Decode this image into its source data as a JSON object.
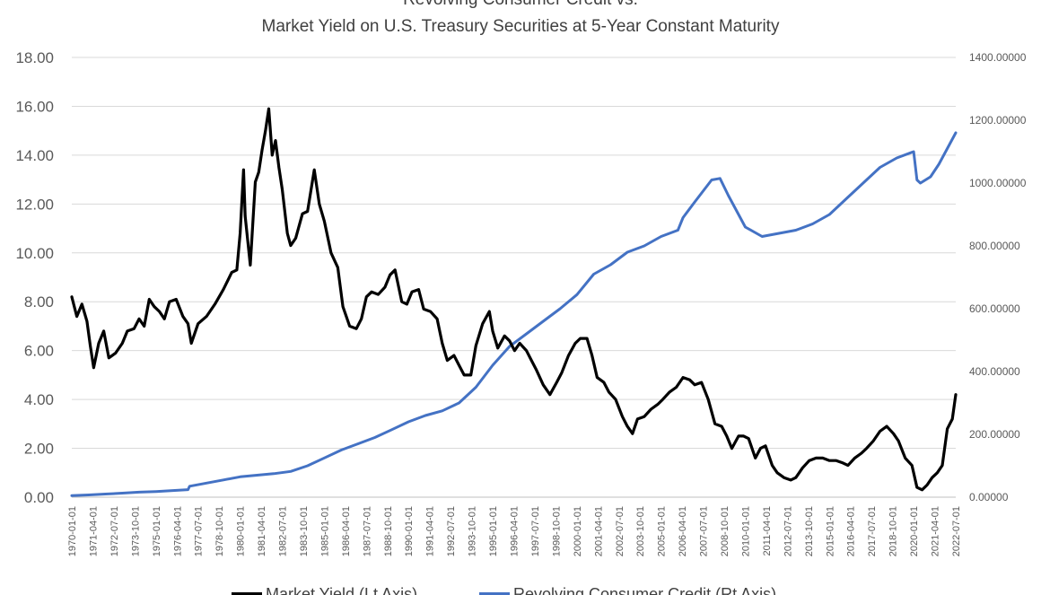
{
  "chart_data": {
    "type": "line",
    "title_lines": [
      "Revolving Consumer Credit  vs.",
      "Market Yield on U.S. Treasury Securities at 5-Year Constant Maturity"
    ],
    "y_left": {
      "min": 0,
      "max": 18,
      "step": 2,
      "tick_labels": [
        "0.00",
        "2.00",
        "4.00",
        "6.00",
        "8.00",
        "10.00",
        "12.00",
        "14.00",
        "16.00",
        "18.00"
      ]
    },
    "y_right": {
      "min": 0,
      "max": 1400,
      "step": 200,
      "tick_labels": [
        "0.00000",
        "200.00000",
        "400.00000",
        "600.00000",
        "800.00000",
        "1000.00000",
        "1200.00000",
        "1400.00000"
      ]
    },
    "x_range": [
      1970.0,
      2022.5
    ],
    "grid": "horizontal",
    "legend_position": "bottom",
    "x_tick_labels": [
      "1970-01-01",
      "1971-04-01",
      "1972-07-01",
      "1973-10-01",
      "1975-01-01",
      "1976-04-01",
      "1977-07-01",
      "1978-10-01",
      "1980-01-01",
      "1981-04-01",
      "1982-07-01",
      "1983-10-01",
      "1985-01-01",
      "1986-04-01",
      "1987-07-01",
      "1988-10-01",
      "1990-01-01",
      "1991-04-01",
      "1992-07-01",
      "1993-10-01",
      "1995-01-01",
      "1996-04-01",
      "1997-07-01",
      "1998-10-01",
      "2000-01-01",
      "2001-04-01",
      "2002-07-01",
      "2003-10-01",
      "2005-01-01",
      "2006-04-01",
      "2007-07-01",
      "2008-10-01",
      "2010-01-01",
      "2011-04-01",
      "2012-07-01",
      "2013-10-01",
      "2015-01-01",
      "2016-04-01",
      "2017-07-01",
      "2018-10-01",
      "2020-01-01",
      "2021-04-01",
      "2022-07-01"
    ],
    "series": [
      {
        "name": "Market Yield (Lt Axis)",
        "axis": "left",
        "color": "#000000",
        "x": [
          1970.0,
          1970.3,
          1970.6,
          1970.9,
          1971.1,
          1971.3,
          1971.6,
          1971.9,
          1972.2,
          1972.6,
          1973.0,
          1973.3,
          1973.7,
          1974.0,
          1974.3,
          1974.6,
          1974.9,
          1975.2,
          1975.5,
          1975.8,
          1976.2,
          1976.6,
          1976.9,
          1977.1,
          1977.5,
          1978.0,
          1978.5,
          1979.0,
          1979.5,
          1979.8,
          1980.0,
          1980.2,
          1980.3,
          1980.6,
          1980.9,
          1981.1,
          1981.3,
          1981.5,
          1981.7,
          1981.9,
          1982.1,
          1982.3,
          1982.5,
          1982.8,
          1983.0,
          1983.3,
          1983.7,
          1984.0,
          1984.4,
          1984.7,
          1985.0,
          1985.4,
          1985.8,
          1986.1,
          1986.5,
          1986.9,
          1987.2,
          1987.5,
          1987.8,
          1988.2,
          1988.6,
          1988.9,
          1989.2,
          1989.6,
          1989.9,
          1990.2,
          1990.6,
          1990.9,
          1991.3,
          1991.7,
          1992.0,
          1992.3,
          1992.7,
          1993.0,
          1993.3,
          1993.7,
          1994.0,
          1994.4,
          1994.8,
          1995.0,
          1995.3,
          1995.7,
          1996.0,
          1996.3,
          1996.6,
          1997.0,
          1997.3,
          1997.6,
          1998.0,
          1998.4,
          1998.8,
          1999.1,
          1999.5,
          1999.9,
          2000.2,
          2000.6,
          2000.9,
          2001.2,
          2001.6,
          2001.9,
          2002.3,
          2002.7,
          2003.0,
          2003.3,
          2003.6,
          2004.0,
          2004.4,
          2004.8,
          2005.1,
          2005.5,
          2005.9,
          2006.3,
          2006.7,
          2007.0,
          2007.4,
          2007.8,
          2008.2,
          2008.6,
          2008.9,
          2009.2,
          2009.6,
          2009.9,
          2010.2,
          2010.6,
          2010.9,
          2011.2,
          2011.6,
          2011.9,
          2012.3,
          2012.7,
          2013.0,
          2013.4,
          2013.8,
          2014.2,
          2014.6,
          2015.0,
          2015.4,
          2015.8,
          2016.1,
          2016.5,
          2016.9,
          2017.2,
          2017.6,
          2018.0,
          2018.4,
          2018.8,
          2019.1,
          2019.5,
          2019.9,
          2020.2,
          2020.5,
          2020.8,
          2021.1,
          2021.4,
          2021.7,
          2022.0,
          2022.3,
          2022.5
        ],
        "values": [
          8.2,
          7.4,
          7.9,
          7.2,
          6.2,
          5.3,
          6.3,
          6.8,
          5.7,
          5.9,
          6.3,
          6.8,
          6.9,
          7.3,
          7.0,
          8.1,
          7.8,
          7.6,
          7.3,
          8.0,
          8.1,
          7.4,
          7.1,
          6.3,
          7.1,
          7.4,
          7.9,
          8.5,
          9.2,
          9.3,
          10.8,
          13.4,
          11.5,
          9.5,
          12.9,
          13.3,
          14.2,
          15.0,
          15.9,
          14.0,
          14.6,
          13.5,
          12.6,
          10.8,
          10.3,
          10.6,
          11.6,
          11.7,
          13.4,
          12.0,
          11.3,
          10.0,
          9.4,
          7.8,
          7.0,
          6.9,
          7.3,
          8.2,
          8.4,
          8.3,
          8.6,
          9.1,
          9.3,
          8.0,
          7.9,
          8.4,
          8.5,
          7.7,
          7.6,
          7.3,
          6.3,
          5.6,
          5.8,
          5.4,
          5.0,
          5.0,
          6.2,
          7.1,
          7.6,
          6.8,
          6.1,
          6.6,
          6.4,
          6.0,
          6.3,
          6.0,
          5.6,
          5.2,
          4.6,
          4.2,
          4.7,
          5.1,
          5.8,
          6.3,
          6.5,
          6.5,
          5.8,
          4.9,
          4.7,
          4.3,
          4.0,
          3.3,
          2.9,
          2.6,
          3.2,
          3.3,
          3.6,
          3.8,
          4.0,
          4.3,
          4.5,
          4.9,
          4.8,
          4.6,
          4.7,
          4.0,
          3.0,
          2.9,
          2.5,
          2.0,
          2.5,
          2.5,
          2.4,
          1.6,
          2.0,
          2.1,
          1.3,
          1.0,
          0.8,
          0.7,
          0.8,
          1.2,
          1.5,
          1.6,
          1.6,
          1.5,
          1.5,
          1.4,
          1.3,
          1.6,
          1.8,
          2.0,
          2.3,
          2.7,
          2.9,
          2.6,
          2.3,
          1.6,
          1.3,
          0.4,
          0.3,
          0.5,
          0.8,
          1.0,
          1.3,
          2.8,
          3.2,
          4.2
        ]
      },
      {
        "name": "Revolving Consumer Credit (Rt Axis)",
        "axis": "right",
        "color": "#4472C4",
        "x": [
          1970.0,
          1971.0,
          1972.0,
          1973.0,
          1974.0,
          1975.0,
          1976.0,
          1976.9,
          1977.0,
          1978.0,
          1979.0,
          1980.0,
          1981.0,
          1982.0,
          1983.0,
          1984.0,
          1985.0,
          1986.0,
          1987.0,
          1988.0,
          1989.0,
          1990.0,
          1991.0,
          1992.0,
          1993.0,
          1994.0,
          1995.0,
          1996.0,
          1997.0,
          1998.0,
          1999.0,
          2000.0,
          2001.0,
          2002.0,
          2003.0,
          2004.0,
          2005.0,
          2006.0,
          2006.3,
          2007.0,
          2008.0,
          2008.5,
          2009.0,
          2010.0,
          2011.0,
          2012.0,
          2013.0,
          2014.0,
          2015.0,
          2016.0,
          2017.0,
          2018.0,
          2019.0,
          2020.0,
          2020.2,
          2020.4,
          2021.0,
          2021.5,
          2022.0,
          2022.5
        ],
        "values": [
          5,
          7,
          10,
          13,
          16,
          18,
          21,
          24,
          35,
          45,
          55,
          65,
          70,
          75,
          82,
          100,
          125,
          150,
          170,
          190,
          215,
          240,
          260,
          275,
          300,
          350,
          420,
          480,
          520,
          560,
          600,
          645,
          710,
          740,
          780,
          800,
          830,
          850,
          890,
          940,
          1010,
          1015,
          960,
          860,
          830,
          840,
          850,
          870,
          900,
          950,
          1000,
          1050,
          1080,
          1100,
          1010,
          1000,
          1020,
          1060,
          1110,
          1160
        ]
      }
    ]
  },
  "legend": {
    "items": [
      {
        "label": "Market Yield (Lt Axis)",
        "color": "#000000"
      },
      {
        "label": "Revolving Consumer Credit (Rt Axis)",
        "color": "#4472C4"
      }
    ]
  }
}
